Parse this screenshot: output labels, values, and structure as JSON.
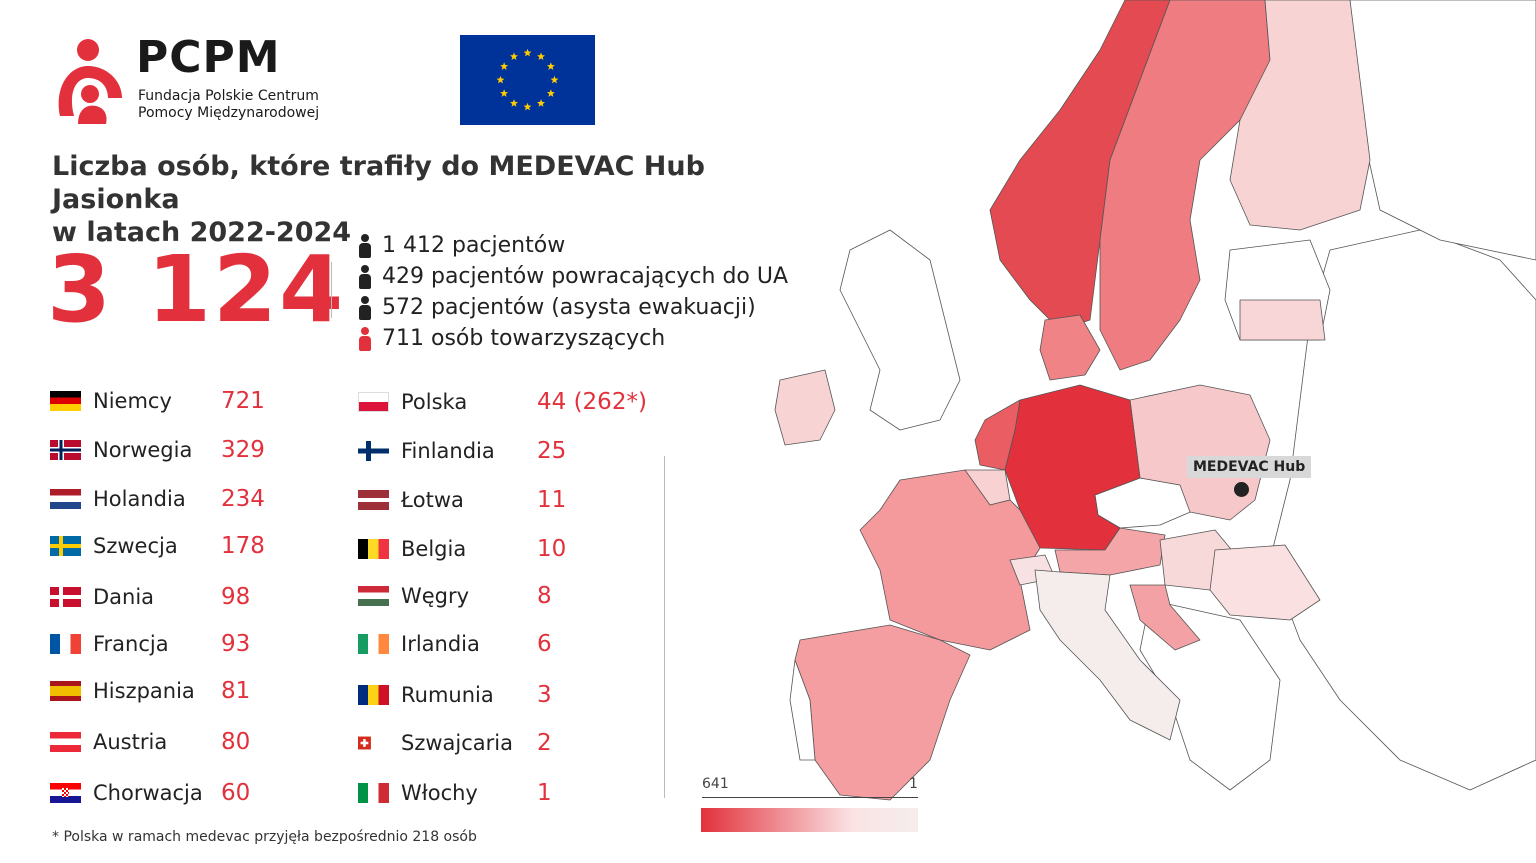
{
  "header": {
    "logo_name": "PCPM",
    "logo_sub_1": "Fundacja Polskie Centrum",
    "logo_sub_2": "Pomocy Międzynarodowej",
    "title_line_1": "Liczba osób, które trafiły do MEDEVAC Hub Jasionka",
    "title_line_2": "w latach 2022-2024"
  },
  "total": "3 124",
  "breakdown": [
    {
      "text": "1 412 pacjentów",
      "icon": "person-icon"
    },
    {
      "text": "429 pacjentów powracających do UA",
      "icon": "person-icon"
    },
    {
      "text": "572 pacjentów (asysta ewakuacji)",
      "icon": "person-icon"
    },
    {
      "text": "711 osób towarzyszących",
      "icon": "person-icon-red"
    }
  ],
  "countries_left": [
    {
      "name": "Niemcy",
      "value": "721"
    },
    {
      "name": "Norwegia",
      "value": "329"
    },
    {
      "name": "Holandia",
      "value": "234"
    },
    {
      "name": "Szwecja",
      "value": "178"
    },
    {
      "name": "Dania",
      "value": "98"
    },
    {
      "name": "Francja",
      "value": "93"
    },
    {
      "name": "Hiszpania",
      "value": "81"
    },
    {
      "name": "Austria",
      "value": "80"
    },
    {
      "name": "Chorwacja",
      "value": "60"
    }
  ],
  "countries_right": [
    {
      "name": "Polska",
      "value": "44 (262*)"
    },
    {
      "name": "Finlandia",
      "value": "25"
    },
    {
      "name": "Łotwa",
      "value": "11"
    },
    {
      "name": "Belgia",
      "value": "10"
    },
    {
      "name": "Węgry",
      "value": "8"
    },
    {
      "name": "Irlandia",
      "value": "6"
    },
    {
      "name": "Rumunia",
      "value": "3"
    },
    {
      "name": "Szwajcaria",
      "value": "2"
    },
    {
      "name": "Włochy",
      "value": "1"
    }
  ],
  "footnote": "*  Polska w ramach medevac przyjęła bezpośrednio 218 osób",
  "map": {
    "hub_label": "MEDEVAC Hub",
    "legend_max": "641",
    "legend_min": "1",
    "colors": {
      "high": "#e2313c",
      "low": "#f5eded",
      "accent": "#e2313c"
    }
  }
}
